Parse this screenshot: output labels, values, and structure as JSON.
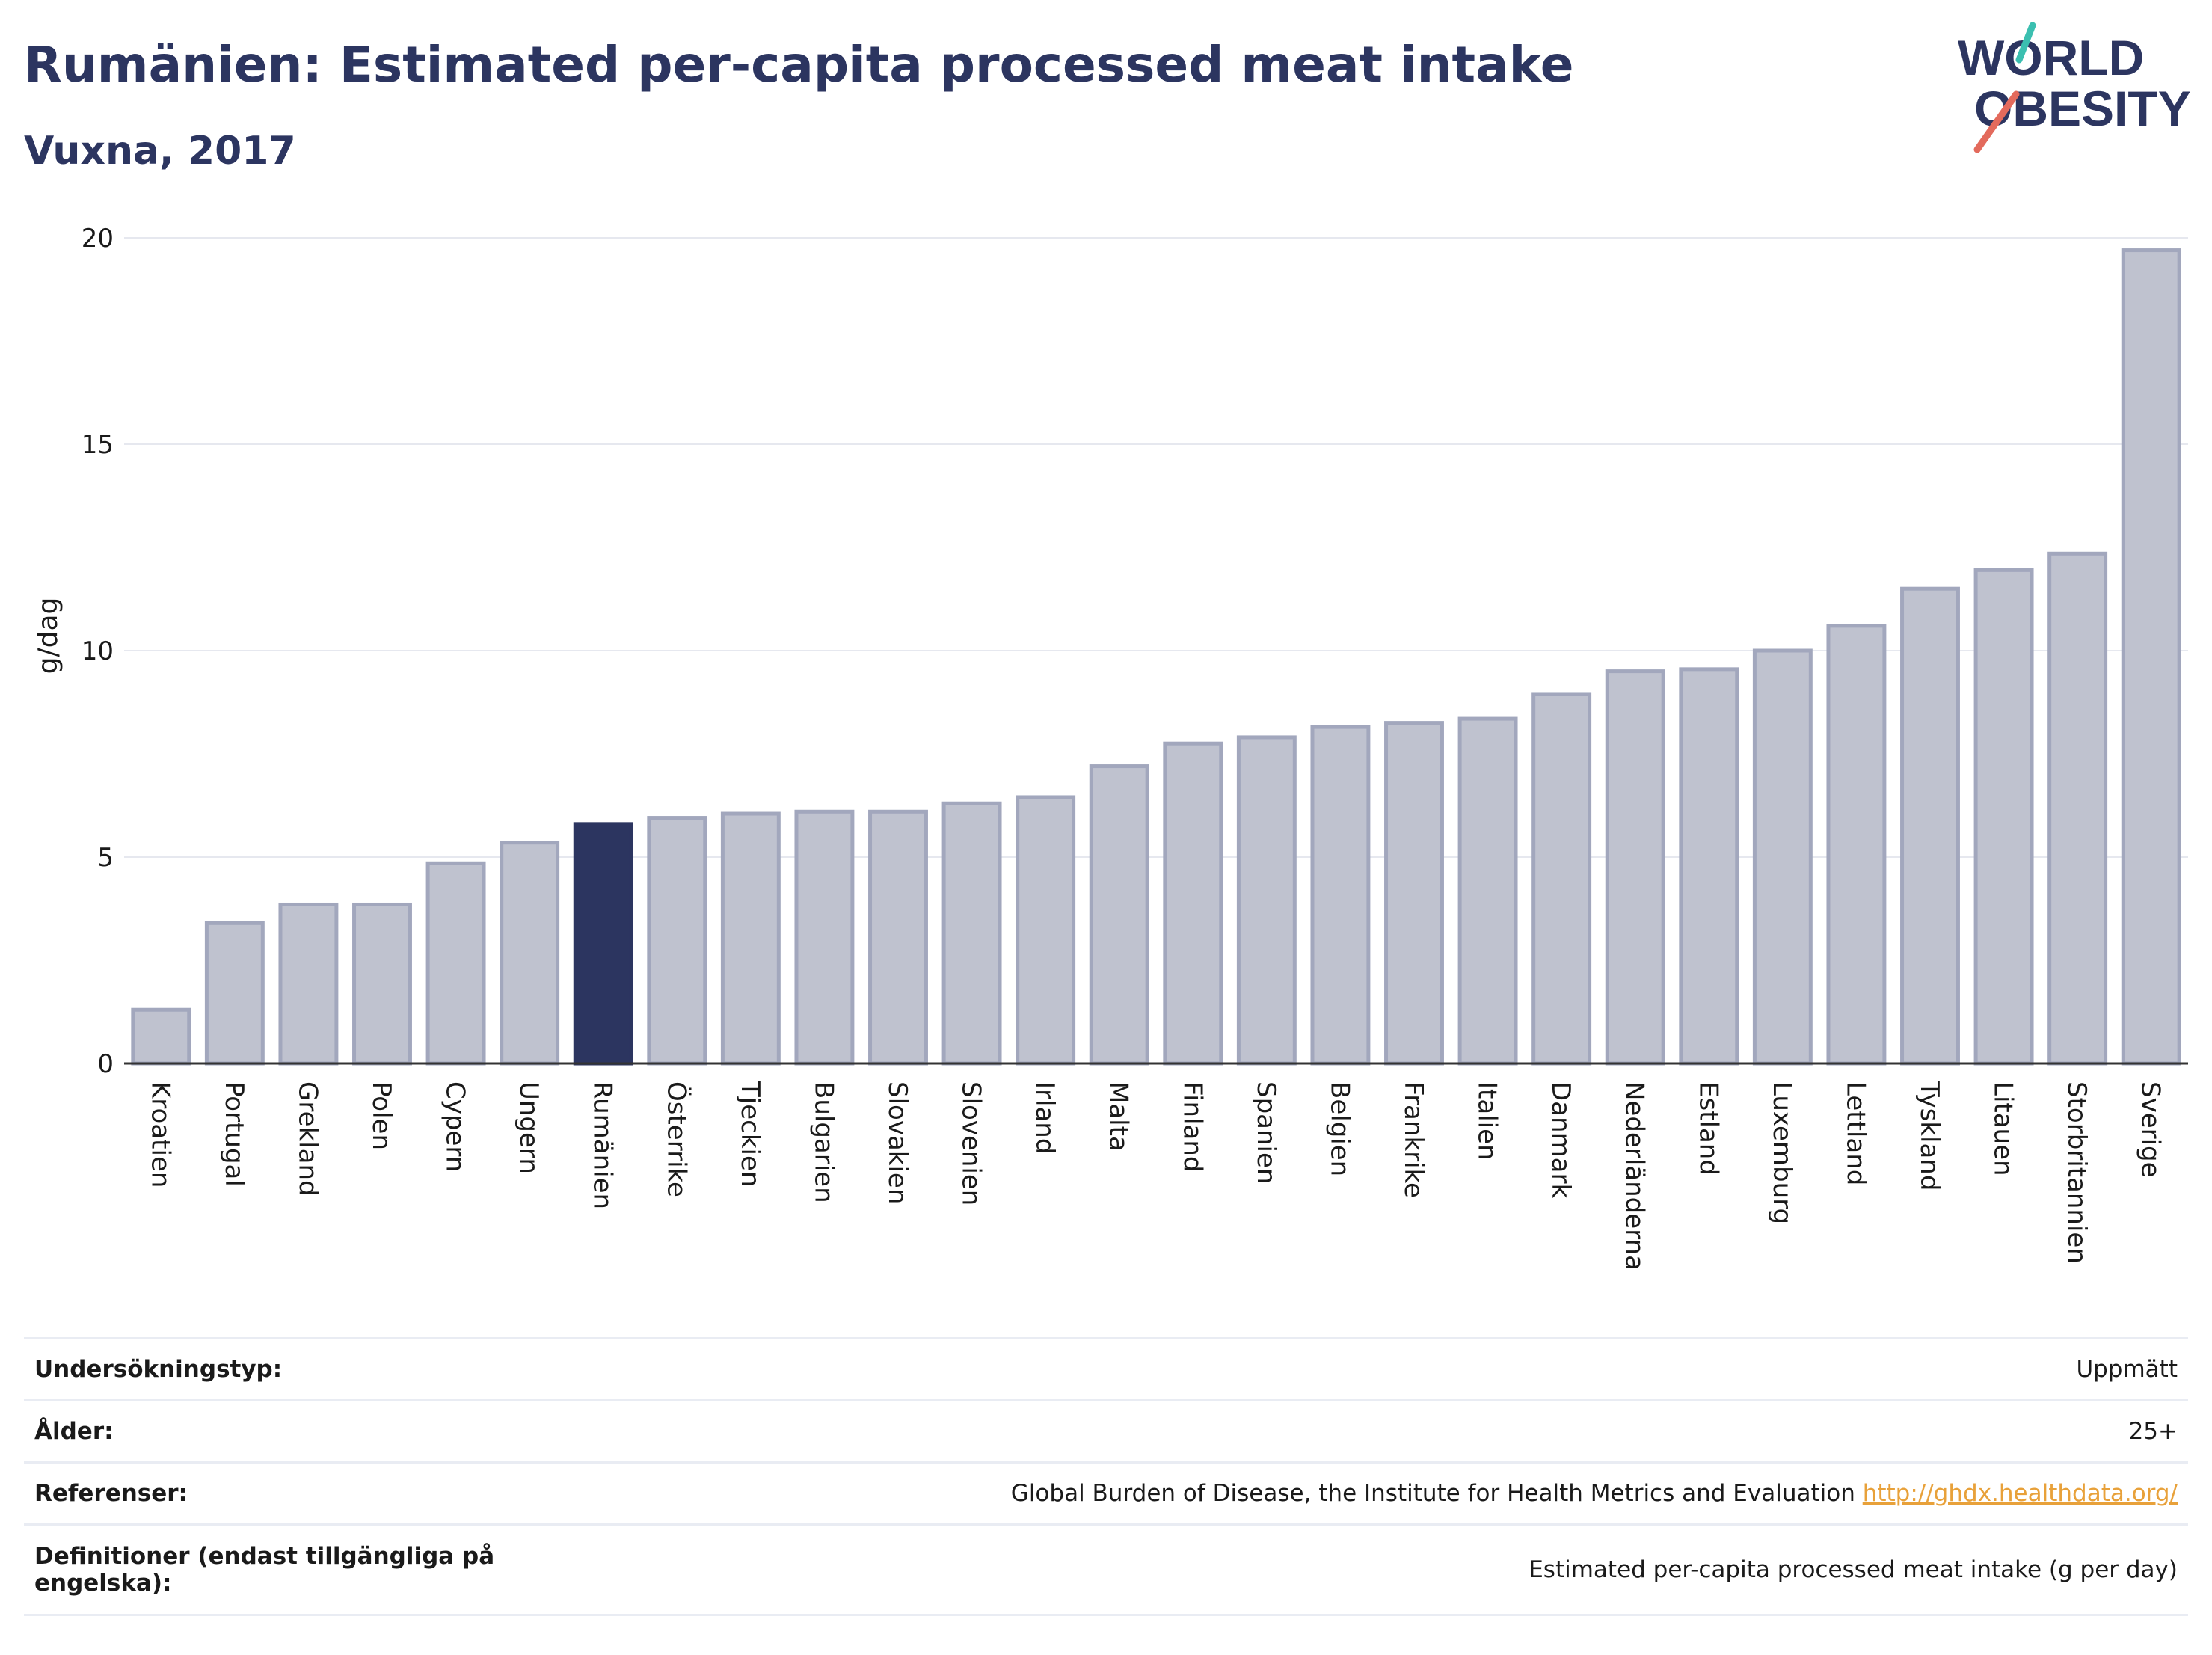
{
  "title": "Rumänien: Estimated per-capita processed meat intake",
  "subtitle": "Vuxna, 2017",
  "logo": {
    "line1": "WORLD",
    "line2": "OBESITY",
    "accent1": "#3bbfb0",
    "accent2": "#e36a5c",
    "brand": "#2c3560"
  },
  "colors": {
    "bar": "#bfc2cf",
    "bar_stroke": "#a2a7bd",
    "highlight": "#2c3560",
    "grid": "#e6e8ef",
    "axis": "#333333"
  },
  "chart_data": {
    "type": "bar",
    "ylabel": "g/dag",
    "xlabel": "",
    "ylim": [
      0,
      20
    ],
    "yticks": [
      0,
      5,
      10,
      15,
      20
    ],
    "highlight": "Rumänien",
    "categories": [
      "Kroatien",
      "Portugal",
      "Grekland",
      "Polen",
      "Cypern",
      "Ungern",
      "Rumänien",
      "Österrike",
      "Tjeckien",
      "Bulgarien",
      "Slovakien",
      "Slovenien",
      "Irland",
      "Malta",
      "Finland",
      "Spanien",
      "Belgien",
      "Frankrike",
      "Italien",
      "Danmark",
      "Nederländerna",
      "Estland",
      "Luxemburg",
      "Lettland",
      "Tyskland",
      "Litauen",
      "Storbritannien",
      "Sverige"
    ],
    "values": [
      1.3,
      3.4,
      3.85,
      3.85,
      4.85,
      5.35,
      5.8,
      5.95,
      6.05,
      6.1,
      6.1,
      6.3,
      6.45,
      7.2,
      7.75,
      7.9,
      8.15,
      8.25,
      8.35,
      8.95,
      9.5,
      9.55,
      10.0,
      10.6,
      11.5,
      11.95,
      12.35,
      19.7
    ]
  },
  "info": {
    "rows": [
      {
        "label": "Undersökningstyp:",
        "value": "Uppmätt"
      },
      {
        "label": "Ålder:",
        "value": "25+"
      },
      {
        "label": "Referenser:",
        "value": "Global Burden of Disease, the Institute for Health Metrics and Evaluation",
        "link": "http://ghdx.healthdata.org/"
      },
      {
        "label": "Definitioner (endast tillgängliga på engelska):",
        "value": "Estimated per-capita processed meat intake (g per day)"
      }
    ]
  }
}
